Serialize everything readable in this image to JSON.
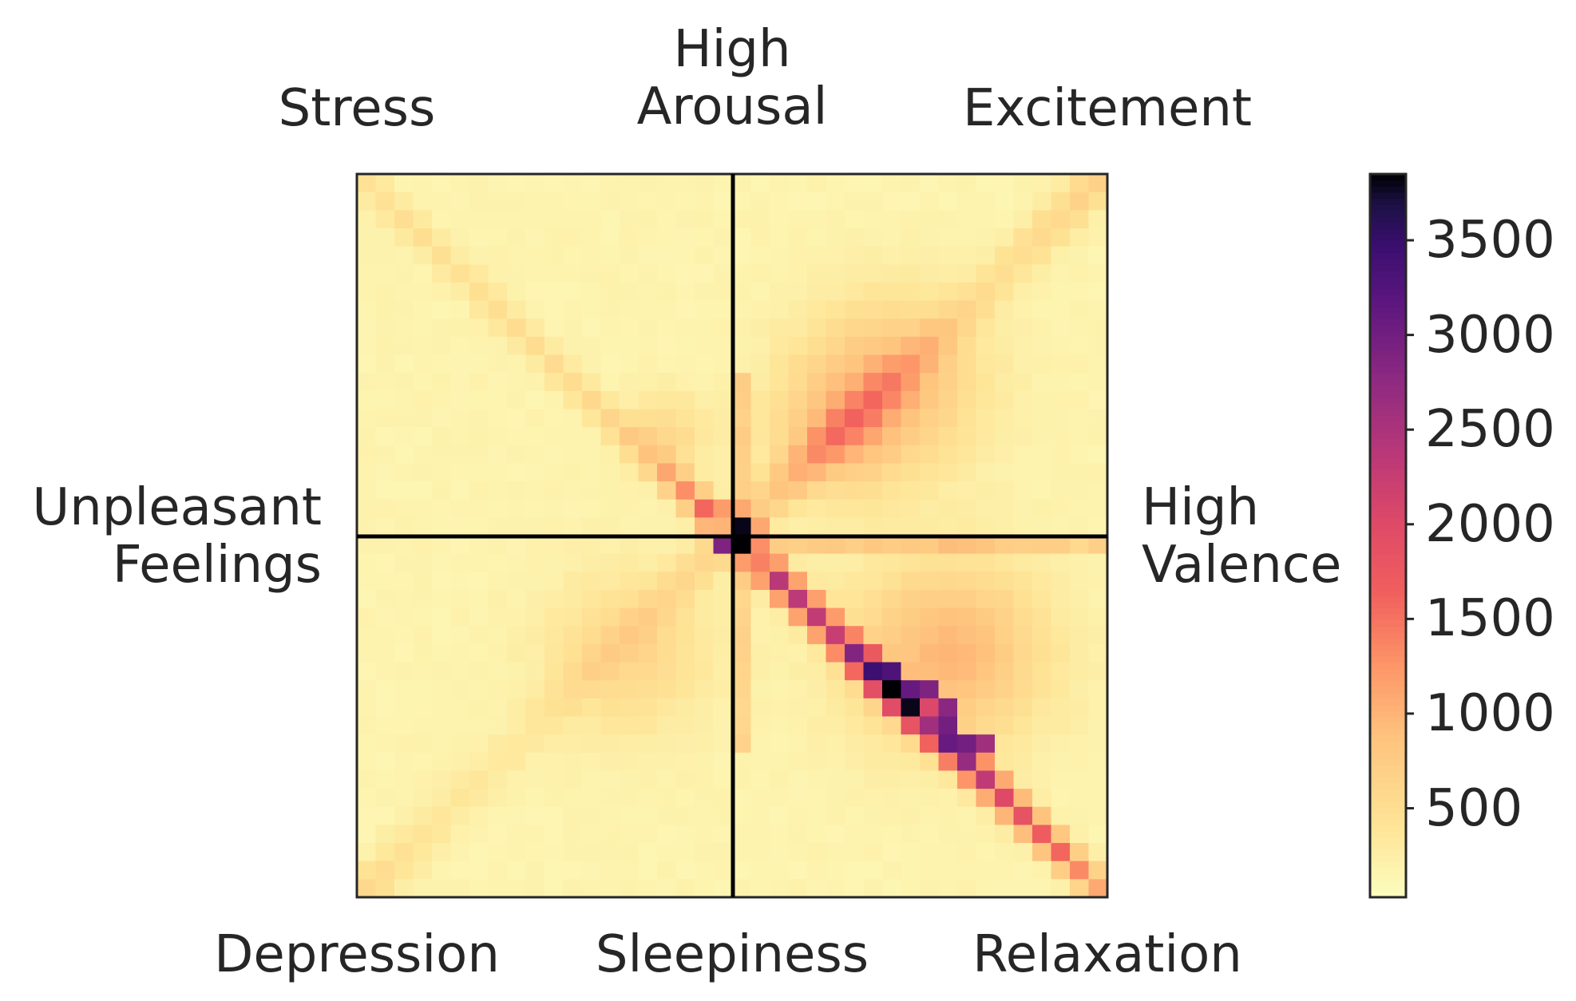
{
  "chart_data": {
    "type": "heatmap",
    "grid_size": 40,
    "quadrant_lines": true,
    "corner_labels": {
      "top_left": "Stress",
      "top_right": "Excitement",
      "bottom_left": "Depression",
      "bottom_right": "Relaxation"
    },
    "axis_labels": {
      "top": [
        "High",
        "Arousal"
      ],
      "bottom": "Sleepiness",
      "left": [
        "Unpleasant",
        "Feelings"
      ],
      "right": [
        "High",
        "Valence"
      ]
    },
    "colorbar": {
      "colormap": "magma_r",
      "min": 30,
      "max": 3850,
      "ticks": [
        500,
        1000,
        1500,
        2000,
        2500,
        3000,
        3500
      ],
      "tick_labels": [
        "500",
        "1000",
        "1500",
        "2000",
        "2500",
        "3000",
        "3500"
      ]
    },
    "value_model": {
      "background": 150,
      "anti_diagonal": [
        [
          0,
          500
        ],
        [
          5,
          300
        ],
        [
          10,
          400
        ],
        [
          14,
          600
        ],
        [
          19,
          500
        ],
        [
          22,
          300
        ],
        [
          26,
          200
        ],
        [
          30,
          150
        ],
        [
          35,
          200
        ],
        [
          39,
          400
        ]
      ],
      "main_diagonal": [
        [
          0,
          300
        ],
        [
          5,
          300
        ],
        [
          10,
          350
        ],
        [
          15,
          450
        ],
        [
          21,
          2300
        ],
        [
          25,
          1900
        ],
        [
          28,
          3400
        ],
        [
          31,
          2600
        ],
        [
          34,
          1800
        ],
        [
          37,
          1400
        ],
        [
          39,
          900
        ]
      ],
      "hotspots": [
        {
          "row": 20,
          "col": 20,
          "value": 3850
        },
        {
          "row": 19,
          "col": 20,
          "value": 3800
        },
        {
          "row": 20,
          "col": 19,
          "value": 2900
        },
        {
          "row": 19,
          "col": 19,
          "value": 1000
        },
        {
          "row": 18,
          "col": 19,
          "value": 1200
        },
        {
          "row": 18,
          "col": 20,
          "value": 1100
        },
        {
          "row": 21,
          "col": 20,
          "value": 1200
        },
        {
          "row": 21,
          "col": 21,
          "value": 1400
        },
        {
          "row": 20,
          "col": 21,
          "value": 1300
        },
        {
          "row": 19,
          "col": 21,
          "value": 1100
        },
        {
          "row": 27,
          "col": 28,
          "value": 3300
        },
        {
          "row": 28,
          "col": 29,
          "value": 3100
        },
        {
          "row": 28,
          "col": 30,
          "value": 2900
        },
        {
          "row": 30,
          "col": 31,
          "value": 3000
        },
        {
          "row": 31,
          "col": 32,
          "value": 3000
        },
        {
          "row": 31,
          "col": 33,
          "value": 2600
        },
        {
          "row": 29,
          "col": 31,
          "value": 2800
        },
        {
          "row": 30,
          "col": 30,
          "value": 2600
        }
      ],
      "blobs": [
        {
          "row": 11,
          "col": 28,
          "sigma": 3.2,
          "value": 700
        },
        {
          "row": 14,
          "col": 25,
          "sigma": 2.5,
          "value": 500
        },
        {
          "row": 14,
          "col": 16,
          "sigma": 1.5,
          "value": 400
        },
        {
          "row": 26,
          "col": 31,
          "sigma": 3.5,
          "value": 800
        },
        {
          "row": 26,
          "col": 14,
          "sigma": 3.0,
          "value": 400
        }
      ],
      "vertical_band": {
        "col": 20,
        "rows": [
          11,
          31
        ],
        "value": 500
      },
      "horizontal_band": {
        "row": 20,
        "cols": [
          22,
          39
        ],
        "value": 550
      }
    }
  }
}
